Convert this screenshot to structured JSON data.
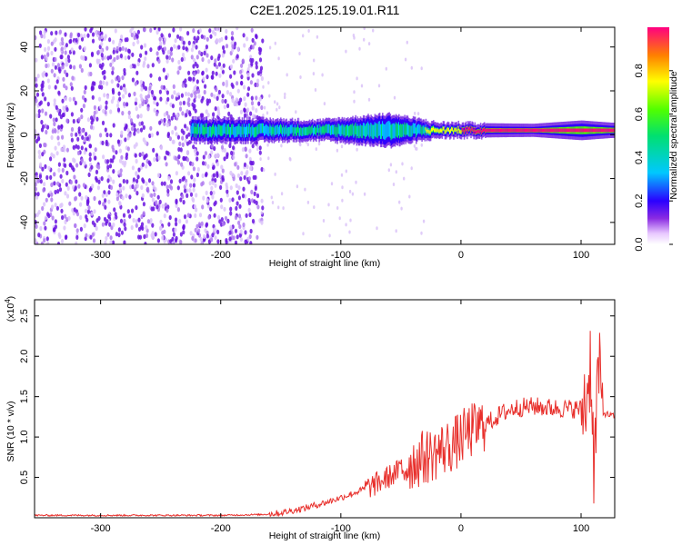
{
  "title": "C2E1.2025.125.19.01.R11",
  "colorbar": {
    "label": "Normalized spectral amplitude",
    "ticks": [
      0.0,
      0.2,
      0.4,
      0.6,
      0.8
    ],
    "range": [
      0,
      1
    ]
  },
  "chart_data": [
    {
      "type": "heatmap",
      "title": "C2E1.2025.125.19.01.R11",
      "xlabel": "Height of straight line (km)",
      "ylabel": "Frequency (Hz)",
      "xlim": [
        -355,
        128
      ],
      "ylim": [
        -50,
        49
      ],
      "xticks": [
        -300,
        -200,
        -100,
        0,
        100
      ],
      "yticks": [
        -40,
        -20,
        0,
        20,
        40
      ],
      "colorbar_label": "Normalized spectral amplitude",
      "colorbar_range": [
        0,
        1
      ],
      "features": {
        "noise_region_x": [
          -355,
          -165
        ],
        "signal_band_start_x": -225,
        "signal_band_freq_hz": 2,
        "signal_band_halfwidth_hz": [
          {
            "x": -180,
            "hw": 4
          },
          {
            "x": -120,
            "hw": 3
          },
          {
            "x": -60,
            "hw": 6
          },
          {
            "x": -20,
            "hw": 2
          },
          {
            "x": 60,
            "hw": 1.5
          },
          {
            "x": 100,
            "hw": 3
          },
          {
            "x": 125,
            "hw": 2
          }
        ]
      }
    },
    {
      "type": "line",
      "xlabel": "Height of straight line (km)",
      "ylabel": "SNR (10 * v/v)",
      "y_scale_note": "(x10",
      "y_scale_exp": "4",
      "xlim": [
        -355,
        128
      ],
      "ylim": [
        0,
        2.7
      ],
      "xticks": [
        -300,
        -200,
        -100,
        0,
        100
      ],
      "yticks": [
        0.5,
        1.0,
        1.5,
        2.0,
        2.5
      ],
      "series": [
        {
          "color": "#e8302c",
          "x": [
            -355,
            -300,
            -250,
            -200,
            -165,
            -150,
            -130,
            -110,
            -90,
            -70,
            -55,
            -45,
            -35,
            -25,
            -15,
            -5,
            0,
            5,
            15,
            25,
            35,
            45,
            60,
            75,
            90,
            100,
            105,
            108,
            111,
            114,
            118,
            128
          ],
          "y": [
            0.03,
            0.03,
            0.03,
            0.03,
            0.04,
            0.06,
            0.12,
            0.2,
            0.3,
            0.42,
            0.55,
            0.65,
            0.72,
            0.78,
            0.85,
            0.92,
            0.98,
            1.05,
            1.12,
            1.2,
            1.3,
            1.36,
            1.38,
            1.36,
            1.35,
            1.35,
            1.5,
            2.0,
            0.5,
            1.9,
            1.3,
            1.25
          ]
        }
      ]
    }
  ]
}
